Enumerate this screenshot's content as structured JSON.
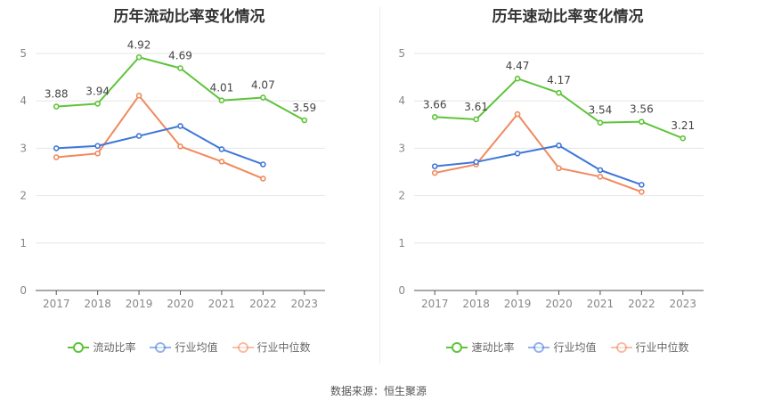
{
  "source_text": "数据来源：恒生聚源",
  "chart_data": [
    {
      "type": "line",
      "title": "历年流动比率变化情况",
      "categories": [
        "2017",
        "2018",
        "2019",
        "2020",
        "2021",
        "2022",
        "2023"
      ],
      "ylim": [
        0,
        5
      ],
      "yticks": [
        "0",
        "1",
        "2",
        "3",
        "4",
        "5"
      ],
      "grid": true,
      "legend_position": "bottom",
      "series": [
        {
          "name": "流动比率",
          "color": "#5ec43a",
          "values": [
            3.88,
            3.94,
            4.92,
            4.69,
            4.01,
            4.07,
            3.59
          ],
          "labels": [
            "3.88",
            "3.94",
            "4.92",
            "4.69",
            "4.01",
            "4.07",
            "3.59"
          ]
        },
        {
          "name": "行业均值",
          "color": "#3f77d8",
          "values": [
            3.0,
            3.05,
            3.26,
            3.47,
            2.98,
            2.66,
            null
          ]
        },
        {
          "name": "行业中位数",
          "color": "#f08a5d",
          "values": [
            2.81,
            2.89,
            4.11,
            3.04,
            2.72,
            2.36,
            null
          ]
        }
      ]
    },
    {
      "type": "line",
      "title": "历年速动比率变化情况",
      "categories": [
        "2017",
        "2018",
        "2019",
        "2020",
        "2021",
        "2022",
        "2023"
      ],
      "ylim": [
        0,
        5
      ],
      "yticks": [
        "0",
        "1",
        "2",
        "3",
        "4",
        "5"
      ],
      "grid": true,
      "legend_position": "bottom",
      "series": [
        {
          "name": "速动比率",
          "color": "#5ec43a",
          "values": [
            3.66,
            3.61,
            4.47,
            4.17,
            3.54,
            3.56,
            3.21
          ],
          "labels": [
            "3.66",
            "3.61",
            "4.47",
            "4.17",
            "3.54",
            "3.56",
            "3.21"
          ]
        },
        {
          "name": "行业均值",
          "color": "#3f77d8",
          "values": [
            2.62,
            2.71,
            2.89,
            3.06,
            2.54,
            2.23,
            null
          ]
        },
        {
          "name": "行业中位数",
          "color": "#f08a5d",
          "values": [
            2.48,
            2.66,
            3.72,
            2.58,
            2.4,
            2.08,
            null
          ]
        }
      ]
    }
  ]
}
